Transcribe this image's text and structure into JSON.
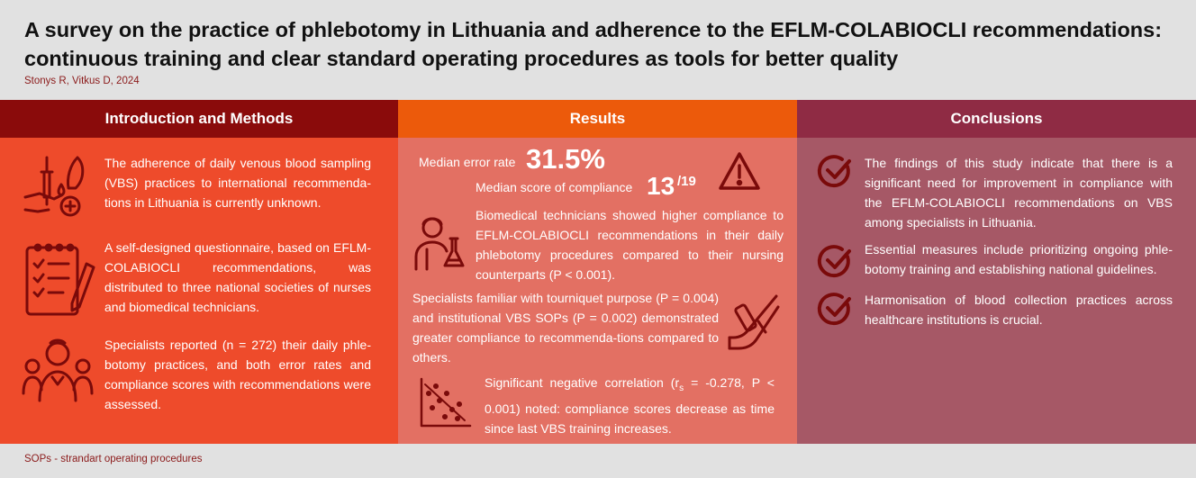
{
  "header": {
    "title": "A survey on the practice of phlebotomy in Lithuania and adherence to the EFLM-COLABIOCLI recommendations: continuous training and clear standard operating procedures as tools for better quality",
    "authors": "Stonys R, Vitkus D, 2024"
  },
  "intro": {
    "heading": "Introduction and Methods",
    "items": [
      {
        "icon": "blood-sampling-icon",
        "text": "The adherence of daily venous blood sampling (VBS) practices to international recommenda-tions in Lithuania is currently unknown."
      },
      {
        "icon": "questionnaire-icon",
        "text": "A self-designed questionnaire, based on EFLM-COLABIOCLI recommendations, was distributed to three national societies of nurses and biomedical technicians."
      },
      {
        "icon": "specialists-group-icon",
        "text": "Specialists reported (n = 272) their daily phle-botomy practices, and both error rates and compliance scores with recommendations were assessed."
      }
    ]
  },
  "results": {
    "heading": "Results",
    "error_label": "Median error rate",
    "error_value": "31.5%",
    "compliance_label": "Median score of compliance",
    "compliance_value": "13",
    "compliance_total": "/19",
    "items": [
      {
        "icon": "lab-technician-icon",
        "text": "Biomedical technicians showed higher compliance to EFLM-COLABIOCLI recommendations in their daily phlebotomy procedures compared to their nursing counterparts (P < 0.001)."
      },
      {
        "icon": "tourniquet-arm-icon",
        "text": "Specialists familiar with tourniquet purpose (P = 0.004) and institutional VBS SOPs (P = 0.002) demonstrated greater compliance to recommenda-tions compared to others."
      },
      {
        "icon": "scatter-plot-icon",
        "text_pre": "Significant negative correlation (r",
        "text_sub": "s",
        "text_post": " = -0.278, P < 0.001) noted: compliance scores decrease as time since last VBS training increases."
      }
    ],
    "warning_icon": "warning-icon"
  },
  "conclusions": {
    "heading": "Conclusions",
    "items": [
      {
        "icon": "check-badge-icon",
        "text": "The findings of this study indicate that there is a significant need for improvement in compliance with the EFLM-COLABIOCLI recommendations on VBS among specialists in Lithuania."
      },
      {
        "icon": "check-badge-icon",
        "text": "Essential measures include prioritizing ongoing phle-botomy training and establishing national guidelines."
      },
      {
        "icon": "check-badge-icon",
        "text": "Harmonisation of blood collection practices across healthcare institutions is crucial."
      }
    ]
  },
  "footer": {
    "note": "SOPs - strandart operating procedures"
  },
  "colors": {
    "intro_bg": "#ee4b2b",
    "intro_head": "#8a0b0b",
    "results_bg": "#e37063",
    "results_head": "#ec5a0b",
    "conclusions_bg": "#a65866",
    "conclusions_head": "#8f2b44",
    "icon_dark": "#7a0a0a"
  }
}
